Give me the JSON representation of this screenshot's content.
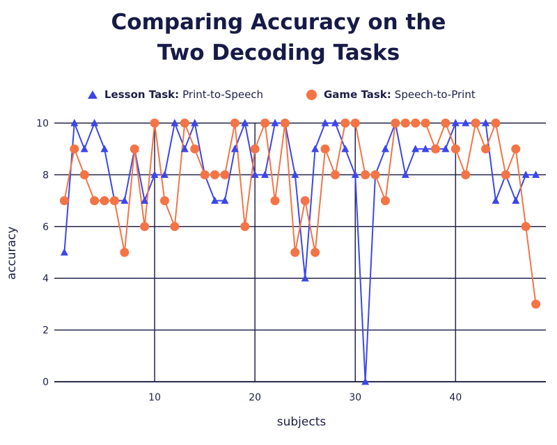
{
  "title_line1": "Comparing Accuracy on the",
  "title_line2": "Two Decoding Tasks",
  "legend": {
    "lesson_name": "Lesson Task:",
    "lesson_desc": "Print-to-Speech",
    "game_name": "Game Task:",
    "game_desc": "Speech-to-Print"
  },
  "chart_data": {
    "type": "line",
    "title": "Comparing Accuracy on the Two Decoding Tasks",
    "xlabel": "subjects",
    "ylabel": "accuracy",
    "xlim": [
      0,
      49
    ],
    "ylim": [
      0,
      10
    ],
    "x_ticks": [
      10,
      20,
      30,
      40
    ],
    "y_ticks": [
      0,
      2,
      4,
      6,
      8,
      10
    ],
    "grid": "horizontal at y ticks; vertical at x ticks",
    "legend_position": "top",
    "x": [
      1,
      2,
      3,
      4,
      5,
      6,
      7,
      8,
      9,
      10,
      11,
      12,
      13,
      14,
      15,
      16,
      17,
      18,
      19,
      20,
      21,
      22,
      23,
      24,
      25,
      26,
      27,
      28,
      29,
      30,
      31,
      32,
      33,
      34,
      35,
      36,
      37,
      38,
      39,
      40,
      41,
      42,
      43,
      44,
      45,
      46,
      47,
      48
    ],
    "series": [
      {
        "name": "Lesson Task: Print-to-Speech",
        "marker": "triangle",
        "color": "#3b47e8",
        "values": [
          5,
          10,
          9,
          10,
          9,
          7,
          7,
          9,
          7,
          8,
          8,
          10,
          9,
          10,
          8,
          7,
          7,
          9,
          10,
          8,
          8,
          10,
          10,
          8,
          4,
          9,
          10,
          10,
          9,
          8,
          0,
          8,
          9,
          10,
          8,
          9,
          9,
          9,
          9,
          10,
          10,
          10,
          10,
          7,
          8,
          7,
          8,
          8
        ]
      },
      {
        "name": "Game Task: Speech-to-Print",
        "marker": "circle",
        "color": "#f47445",
        "values": [
          7,
          9,
          8,
          7,
          7,
          7,
          5,
          9,
          6,
          10,
          7,
          6,
          10,
          9,
          8,
          8,
          8,
          10,
          6,
          9,
          10,
          7,
          10,
          5,
          7,
          5,
          9,
          8,
          10,
          10,
          8,
          8,
          7,
          10,
          10,
          10,
          10,
          9,
          10,
          9,
          8,
          10,
          9,
          10,
          8,
          9,
          6,
          3
        ]
      }
    ]
  }
}
